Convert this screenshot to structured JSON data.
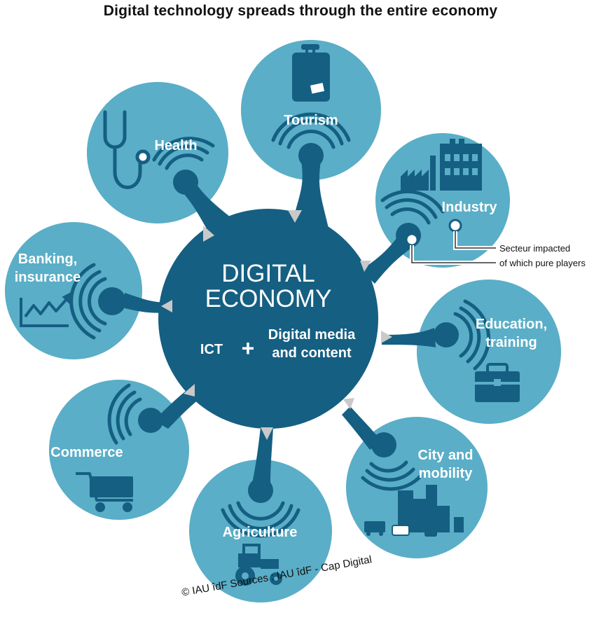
{
  "title": "Digital technology spreads through the entire economy",
  "center": {
    "line1": "DIGITAL",
    "line2": "ECONOMY",
    "ict": "ICT",
    "plus": "+",
    "media1": "Digital media",
    "media2": "and content"
  },
  "sectors": {
    "tourism": {
      "label": "Tourism",
      "icon": "suitcase-icon"
    },
    "health": {
      "label": "Health",
      "icon": "stethoscope-icon"
    },
    "industry": {
      "label": "Industry",
      "icon": "factory-icon"
    },
    "banking": {
      "line1": "Banking,",
      "line2": "insurance",
      "icon": "chart-trend-icon"
    },
    "education": {
      "line1": "Education,",
      "line2": "training",
      "icon": "briefcase-icon"
    },
    "commerce": {
      "label": "Commerce",
      "icon": "shopping-cart-icon"
    },
    "city": {
      "line1": "City and",
      "line2": "mobility",
      "icon": "city-icon"
    },
    "agriculture": {
      "label": "Agriculture",
      "icon": "tractor-icon"
    }
  },
  "legend": {
    "impacted": "Secteur impacted",
    "pure_players": "of which pure players"
  },
  "credit": "© IAU îdF Sources : IAU îdF - Cap Digital",
  "colors": {
    "center": "#155f82",
    "satellite": "#5aaec7",
    "arrow": "#c9c9c9"
  }
}
